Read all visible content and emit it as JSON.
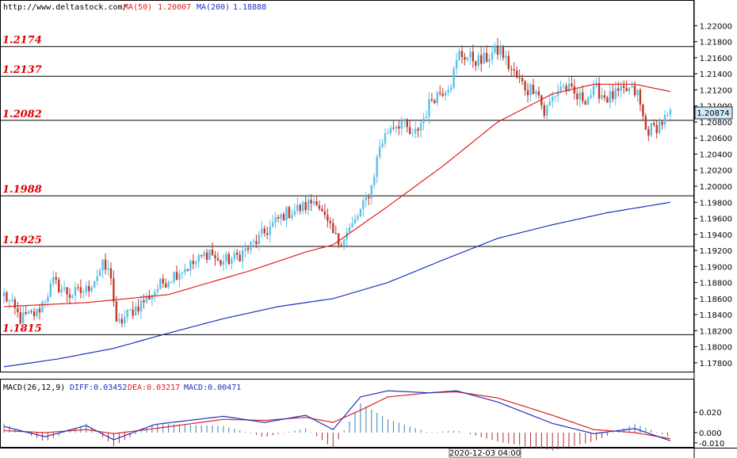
{
  "header": {
    "url": "http://www.deltastock.com/",
    "ma50_label": "MA(50)",
    "ma50_value": "1.20007",
    "ma200_label": "MA(200)",
    "ma200_value": "1.18888"
  },
  "macd_header": {
    "label": "MACD(26,12,9)",
    "diff": "DIFF:0.03452",
    "dea": "DEA:0.03217",
    "macd": "MACD:0.00471"
  },
  "time_label": "2020-12-03 04:00",
  "colors": {
    "bull": "#5bc0e8",
    "bear": "#c0392b",
    "ma50": "#e02020",
    "ma200": "#2030c0",
    "level_text": "#e00000",
    "price_box": "#cfe8f6"
  },
  "chart_data": [
    {
      "type": "candlestick",
      "current_price": "1.20874",
      "ylim": [
        1.177,
        1.223
      ],
      "y_ticks": [
        "1.22000",
        "1.21800",
        "1.21600",
        "1.21400",
        "1.21200",
        "1.21000",
        "1.20800",
        "1.20600",
        "1.20400",
        "1.20200",
        "1.20000",
        "1.19800",
        "1.19600",
        "1.19400",
        "1.19200",
        "1.19000",
        "1.18800",
        "1.18600",
        "1.18400",
        "1.18200",
        "1.18000",
        "1.17800"
      ],
      "levels": [
        {
          "label": "1.2174",
          "value": 1.2174
        },
        {
          "label": "1.2137",
          "value": 1.2137
        },
        {
          "label": "1.2082",
          "value": 1.2082
        },
        {
          "label": "1.1988",
          "value": 1.1988
        },
        {
          "label": "1.1925",
          "value": 1.1925
        },
        {
          "label": "1.1815",
          "value": 1.1815
        }
      ],
      "anchors": [
        [
          0,
          1.1865
        ],
        [
          6,
          1.1835
        ],
        [
          12,
          1.1842
        ],
        [
          18,
          1.188
        ],
        [
          24,
          1.1865
        ],
        [
          30,
          1.187
        ],
        [
          36,
          1.19
        ],
        [
          39,
          1.189
        ],
        [
          41,
          1.1825
        ],
        [
          45,
          1.184
        ],
        [
          52,
          1.186
        ],
        [
          58,
          1.188
        ],
        [
          64,
          1.1895
        ],
        [
          70,
          1.1905
        ],
        [
          75,
          1.192
        ],
        [
          78,
          1.1905
        ],
        [
          84,
          1.191
        ],
        [
          90,
          1.1925
        ],
        [
          96,
          1.1945
        ],
        [
          102,
          1.1965
        ],
        [
          110,
          1.1975
        ],
        [
          114,
          1.1985
        ],
        [
          116,
          1.1965
        ],
        [
          119,
          1.1945
        ],
        [
          122,
          1.193
        ],
        [
          127,
          1.195
        ],
        [
          131,
          1.1975
        ],
        [
          134,
          1.2
        ],
        [
          137,
          1.205
        ],
        [
          141,
          1.2075
        ],
        [
          145,
          1.208
        ],
        [
          149,
          1.206
        ],
        [
          153,
          1.2085
        ],
        [
          156,
          1.211
        ],
        [
          160,
          1.212
        ],
        [
          163,
          1.213
        ],
        [
          166,
          1.2165
        ],
        [
          170,
          1.216
        ],
        [
          174,
          1.2155
        ],
        [
          178,
          1.2165
        ],
        [
          181,
          1.217
        ],
        [
          184,
          1.215
        ],
        [
          187,
          1.2135
        ],
        [
          191,
          1.212
        ],
        [
          194,
          1.2125
        ],
        [
          197,
          1.209
        ],
        [
          200,
          1.211
        ],
        [
          203,
          1.2125
        ],
        [
          206,
          1.212
        ],
        [
          209,
          1.211
        ],
        [
          212,
          1.211
        ],
        [
          216,
          1.212
        ],
        [
          220,
          1.211
        ],
        [
          224,
          1.2115
        ],
        [
          228,
          1.212
        ],
        [
          231,
          1.2115
        ],
        [
          234,
          1.207
        ],
        [
          237,
          1.2072
        ],
        [
          241,
          1.2083
        ],
        [
          243,
          1.2087
        ]
      ],
      "ma50": [
        [
          0,
          1.185
        ],
        [
          30,
          1.1855
        ],
        [
          60,
          1.1865
        ],
        [
          90,
          1.1895
        ],
        [
          110,
          1.1918
        ],
        [
          120,
          1.1927
        ],
        [
          140,
          1.1975
        ],
        [
          160,
          1.2025
        ],
        [
          180,
          1.208
        ],
        [
          200,
          1.2115
        ],
        [
          215,
          1.2127
        ],
        [
          230,
          1.2127
        ],
        [
          243,
          1.2118
        ]
      ],
      "ma200": [
        [
          0,
          1.1775
        ],
        [
          20,
          1.1785
        ],
        [
          40,
          1.1798
        ],
        [
          60,
          1.1817
        ],
        [
          80,
          1.1835
        ],
        [
          100,
          1.185
        ],
        [
          120,
          1.186
        ],
        [
          140,
          1.188
        ],
        [
          160,
          1.1908
        ],
        [
          180,
          1.1935
        ],
        [
          200,
          1.1952
        ],
        [
          220,
          1.1967
        ],
        [
          243,
          1.198
        ]
      ]
    },
    {
      "type": "line",
      "title": "MACD(26,12,9)",
      "ylim": [
        -0.014,
        0.052
      ],
      "y_ticks": [
        "0.020",
        "0.000",
        "-0.010"
      ],
      "diff": [
        [
          0,
          0.006
        ],
        [
          15,
          -0.004
        ],
        [
          30,
          0.007
        ],
        [
          40,
          -0.007
        ],
        [
          55,
          0.008
        ],
        [
          80,
          0.016
        ],
        [
          95,
          0.01
        ],
        [
          110,
          0.017
        ],
        [
          120,
          0.003
        ],
        [
          130,
          0.035
        ],
        [
          140,
          0.041
        ],
        [
          155,
          0.039
        ],
        [
          165,
          0.041
        ],
        [
          180,
          0.03
        ],
        [
          200,
          0.009
        ],
        [
          215,
          -0.001
        ],
        [
          230,
          0.004
        ],
        [
          243,
          -0.008
        ]
      ],
      "dea": [
        [
          0,
          0.002
        ],
        [
          15,
          0.0
        ],
        [
          30,
          0.003
        ],
        [
          40,
          -0.001
        ],
        [
          55,
          0.004
        ],
        [
          80,
          0.013
        ],
        [
          95,
          0.012
        ],
        [
          110,
          0.015
        ],
        [
          120,
          0.01
        ],
        [
          130,
          0.022
        ],
        [
          140,
          0.035
        ],
        [
          155,
          0.039
        ],
        [
          165,
          0.04
        ],
        [
          180,
          0.034
        ],
        [
          200,
          0.017
        ],
        [
          215,
          0.003
        ],
        [
          230,
          0.0
        ],
        [
          243,
          -0.006
        ]
      ]
    }
  ]
}
